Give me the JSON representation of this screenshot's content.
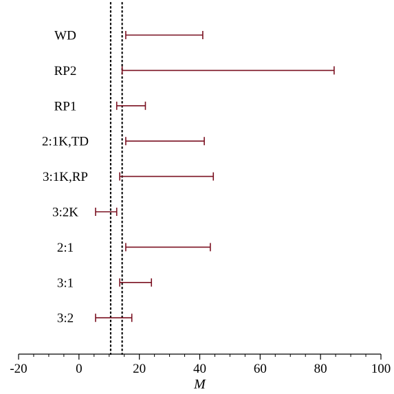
{
  "chart_data": {
    "type": "interval",
    "xlabel": "M",
    "xlim": [
      -20,
      100
    ],
    "xticks": [
      -20,
      0,
      20,
      40,
      60,
      80,
      100
    ],
    "xtick_labels": [
      "-20",
      "0",
      "20",
      "40",
      "60",
      "80",
      "100"
    ],
    "reference_lines": [
      10.5,
      14.3
    ],
    "reference_line_style": "dotted",
    "interval_color": "#7a1020",
    "intervals": [
      {
        "label": "WD",
        "low": 15.5,
        "high": 41
      },
      {
        "label": "RP2",
        "low": 14.3,
        "high": 84.5
      },
      {
        "label": "RP1",
        "low": 12.5,
        "high": 22
      },
      {
        "label": "2:1K,TD",
        "low": 15.5,
        "high": 41.5
      },
      {
        "label": "3:1K,RP",
        "low": 13.5,
        "high": 44.5
      },
      {
        "label": "3:2K",
        "low": 5.5,
        "high": 12.5
      },
      {
        "label": "2:1",
        "low": 15.5,
        "high": 43.5
      },
      {
        "label": "3:1",
        "low": 13.5,
        "high": 24
      },
      {
        "label": "3:2",
        "low": 5.5,
        "high": 17.5
      }
    ]
  }
}
